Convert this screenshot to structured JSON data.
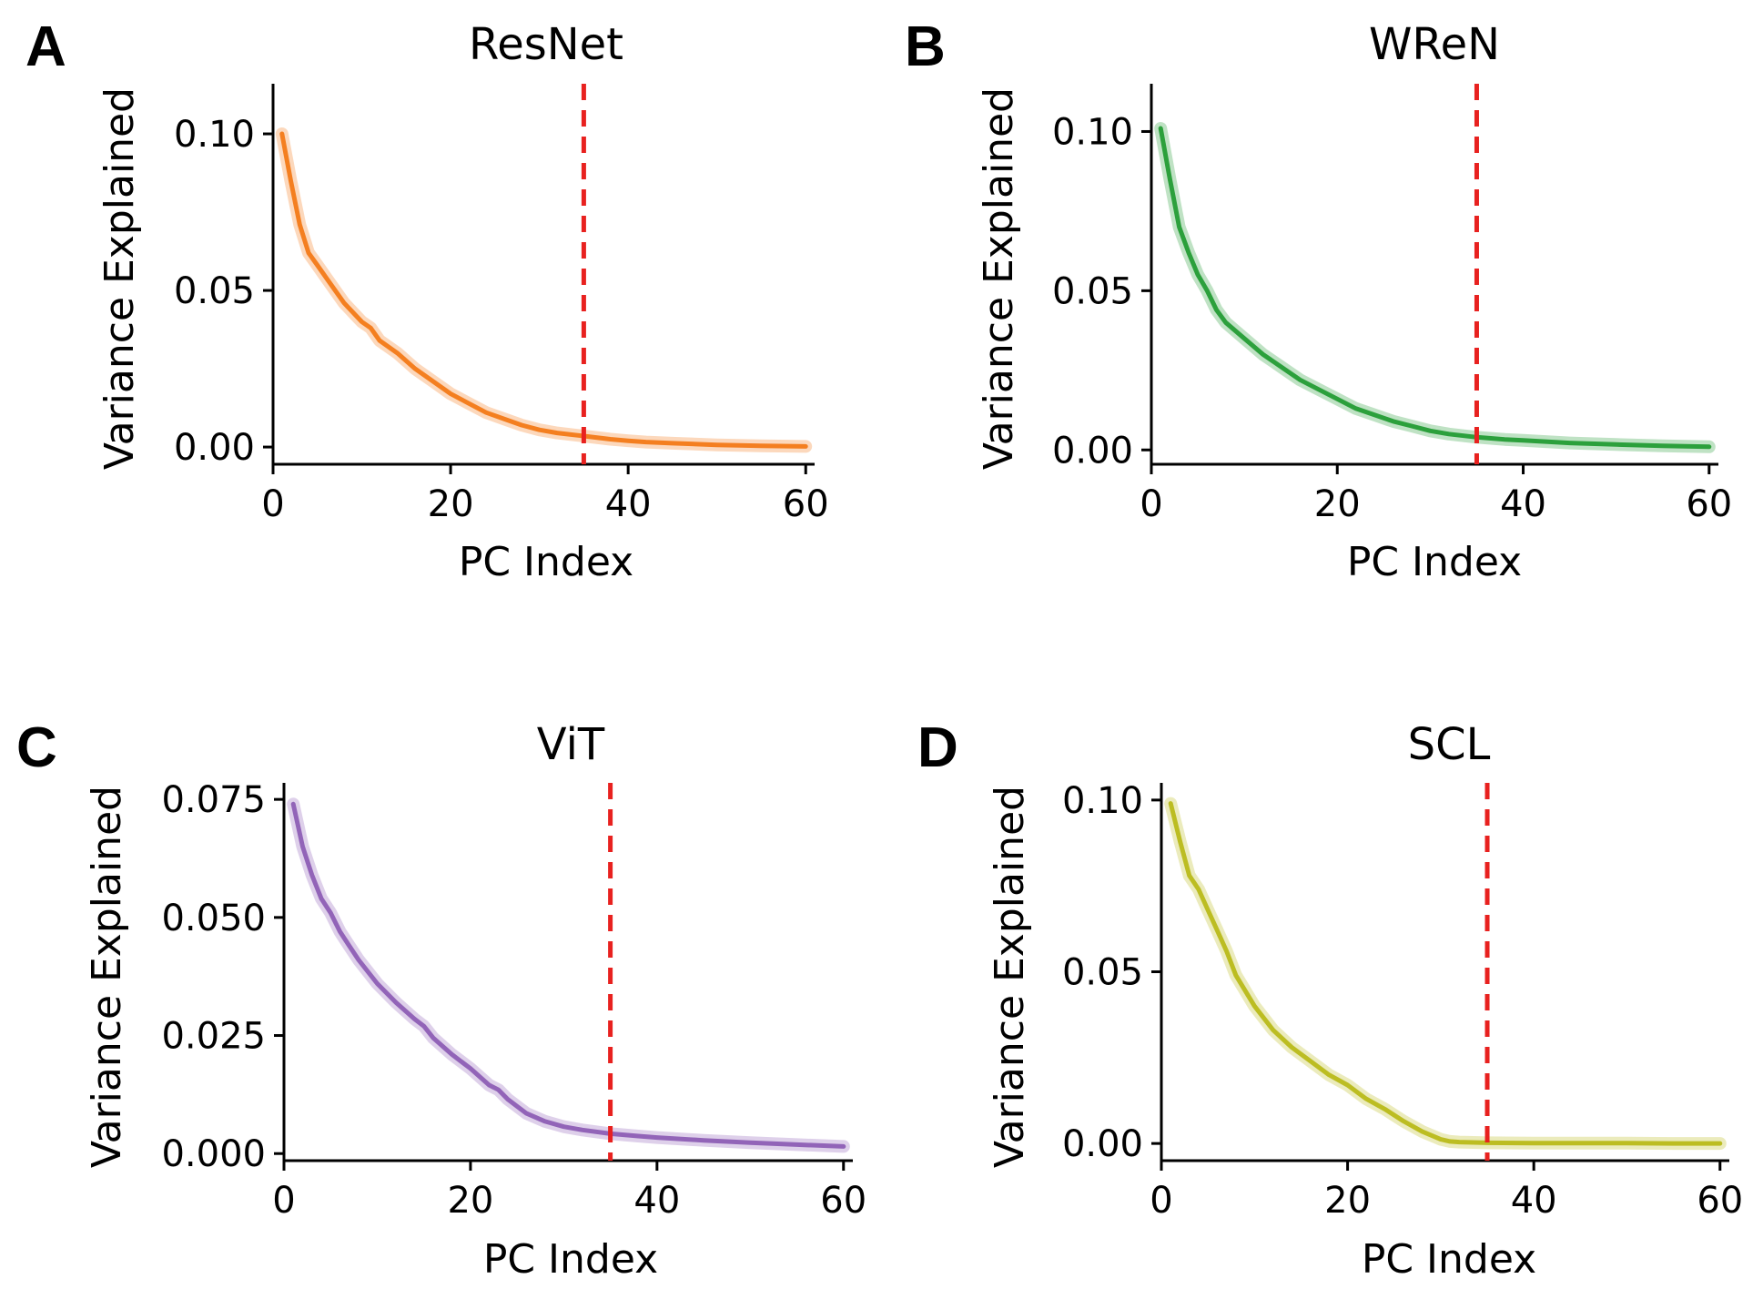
{
  "cutoff_color": "#e8211f",
  "chart_data": [
    {
      "type": "line",
      "panel": "A",
      "title": "ResNet",
      "xlabel": "PC Index",
      "ylabel": "Variance Explained",
      "color": "#f47f20",
      "xlim": [
        0,
        61
      ],
      "ylim": [
        -0.0055,
        0.116
      ],
      "xticks": [
        0,
        20,
        40,
        60
      ],
      "xtick_labels": [
        "0",
        "20",
        "40",
        "60"
      ],
      "yticks": [
        0.0,
        0.05,
        0.1
      ],
      "ytick_labels": [
        "0.00",
        "0.05",
        "0.10"
      ],
      "cutoff_x": 35,
      "x": [
        1,
        2,
        3,
        4,
        5,
        6,
        8,
        10,
        11,
        12,
        14,
        16,
        18,
        20,
        22,
        24,
        26,
        28,
        30,
        32,
        35,
        38,
        40,
        42,
        45,
        50,
        55,
        60
      ],
      "y": [
        0.1,
        0.085,
        0.071,
        0.062,
        0.058,
        0.054,
        0.046,
        0.04,
        0.038,
        0.034,
        0.03,
        0.025,
        0.021,
        0.017,
        0.014,
        0.011,
        0.009,
        0.007,
        0.0055,
        0.0045,
        0.0035,
        0.0025,
        0.002,
        0.0016,
        0.0012,
        0.0007,
        0.0004,
        0.0002
      ]
    },
    {
      "type": "line",
      "panel": "B",
      "title": "WReN",
      "xlabel": "PC Index",
      "ylabel": "Variance Explained",
      "color": "#2ca03c",
      "xlim": [
        0,
        61
      ],
      "ylim": [
        -0.0045,
        0.115
      ],
      "xticks": [
        0,
        20,
        40,
        60
      ],
      "xtick_labels": [
        "0",
        "20",
        "40",
        "60"
      ],
      "yticks": [
        0.0,
        0.05,
        0.1
      ],
      "ytick_labels": [
        "0.00",
        "0.05",
        "0.10"
      ],
      "cutoff_x": 35,
      "x": [
        1,
        2,
        3,
        4,
        5,
        6,
        7,
        8,
        10,
        12,
        14,
        16,
        18,
        20,
        22,
        24,
        26,
        28,
        30,
        32,
        35,
        38,
        40,
        45,
        50,
        55,
        60
      ],
      "y": [
        0.101,
        0.085,
        0.07,
        0.062,
        0.055,
        0.05,
        0.044,
        0.04,
        0.035,
        0.03,
        0.026,
        0.022,
        0.019,
        0.016,
        0.013,
        0.011,
        0.009,
        0.0075,
        0.006,
        0.005,
        0.004,
        0.0033,
        0.003,
        0.0022,
        0.0017,
        0.0013,
        0.001
      ]
    },
    {
      "type": "line",
      "panel": "C",
      "title": "ViT",
      "xlabel": "PC Index",
      "ylabel": "Variance Explained",
      "color": "#9264b8",
      "xlim": [
        0,
        61
      ],
      "ylim": [
        -0.0015,
        0.0785
      ],
      "xticks": [
        0,
        20,
        40,
        60
      ],
      "xtick_labels": [
        "0",
        "20",
        "40",
        "60"
      ],
      "yticks": [
        0.0,
        0.025,
        0.05,
        0.075
      ],
      "ytick_labels": [
        "0.000",
        "0.025",
        "0.050",
        "0.075"
      ],
      "cutoff_x": 35,
      "x": [
        1,
        2,
        3,
        4,
        5,
        6,
        7,
        8,
        10,
        12,
        14,
        15,
        16,
        18,
        20,
        22,
        23,
        24,
        26,
        28,
        30,
        32,
        35,
        38,
        40,
        45,
        50,
        55,
        60
      ],
      "y": [
        0.074,
        0.065,
        0.059,
        0.054,
        0.051,
        0.047,
        0.044,
        0.041,
        0.036,
        0.032,
        0.0285,
        0.027,
        0.0245,
        0.021,
        0.018,
        0.0145,
        0.0135,
        0.0115,
        0.0085,
        0.0068,
        0.0057,
        0.005,
        0.0042,
        0.0037,
        0.0034,
        0.0028,
        0.0023,
        0.0019,
        0.0015
      ]
    },
    {
      "type": "line",
      "panel": "D",
      "title": "SCL",
      "xlabel": "PC Index",
      "ylabel": "Variance Explained",
      "color": "#bcbd22",
      "xlim": [
        0,
        61
      ],
      "ylim": [
        -0.005,
        0.105
      ],
      "xticks": [
        0,
        20,
        40,
        60
      ],
      "xtick_labels": [
        "0",
        "20",
        "40",
        "60"
      ],
      "yticks": [
        0.0,
        0.05,
        0.1
      ],
      "ytick_labels": [
        "0.00",
        "0.05",
        "0.10"
      ],
      "cutoff_x": 35,
      "x": [
        1,
        2,
        3,
        4,
        5,
        6,
        7,
        8,
        10,
        12,
        14,
        16,
        18,
        20,
        22,
        24,
        26,
        28,
        30,
        31,
        32,
        35,
        40,
        45,
        50,
        55,
        60
      ],
      "y": [
        0.099,
        0.088,
        0.078,
        0.074,
        0.068,
        0.062,
        0.056,
        0.049,
        0.04,
        0.033,
        0.028,
        0.024,
        0.02,
        0.017,
        0.013,
        0.01,
        0.0065,
        0.0035,
        0.0012,
        0.0006,
        0.0004,
        0.0002,
        0.0001,
        0.0001,
        0.0001,
        0.0,
        0.0
      ]
    }
  ]
}
